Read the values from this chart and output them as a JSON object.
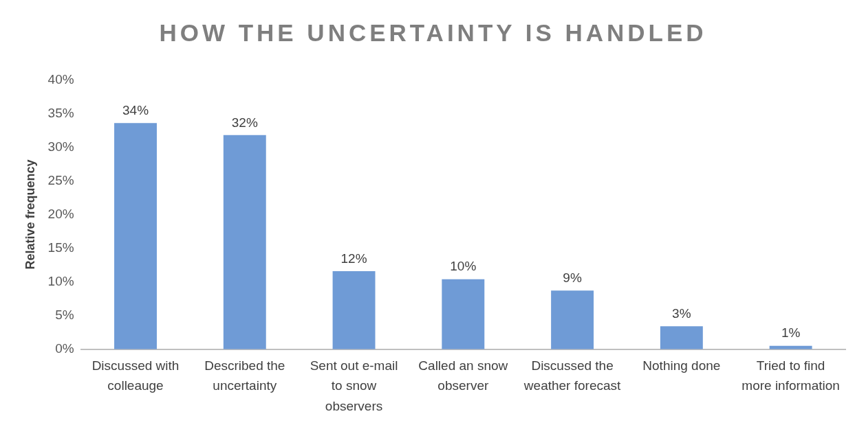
{
  "chart_data": {
    "type": "bar",
    "title": "HOW THE UNCERTAINTY IS HANDLED",
    "ylabel": "Relative frequency",
    "categories": [
      "Discussed with colleauge",
      "Described the uncertainty",
      "Sent out e-mail to snow observers",
      "Called an snow observer",
      "Discussed the weather forecast",
      "Nothing done",
      "Tried to find more information"
    ],
    "values": [
      33.6,
      31.8,
      11.6,
      10.4,
      8.7,
      3.4,
      0.5
    ],
    "value_labels": [
      "34%",
      "32%",
      "12%",
      "10%",
      "9%",
      "3%",
      "1%"
    ],
    "color": "#6f9bd6",
    "ylim": [
      0,
      40
    ],
    "yticks": [
      {
        "value": 0,
        "label": "0%"
      },
      {
        "value": 5,
        "label": "5%"
      },
      {
        "value": 10,
        "label": "10%"
      },
      {
        "value": 15,
        "label": "15%"
      },
      {
        "value": 20,
        "label": "20%"
      },
      {
        "value": 25,
        "label": "25%"
      },
      {
        "value": 30,
        "label": "30%"
      },
      {
        "value": 35,
        "label": "35%"
      },
      {
        "value": 40,
        "label": "40%"
      }
    ],
    "grid": false,
    "legend": false
  }
}
